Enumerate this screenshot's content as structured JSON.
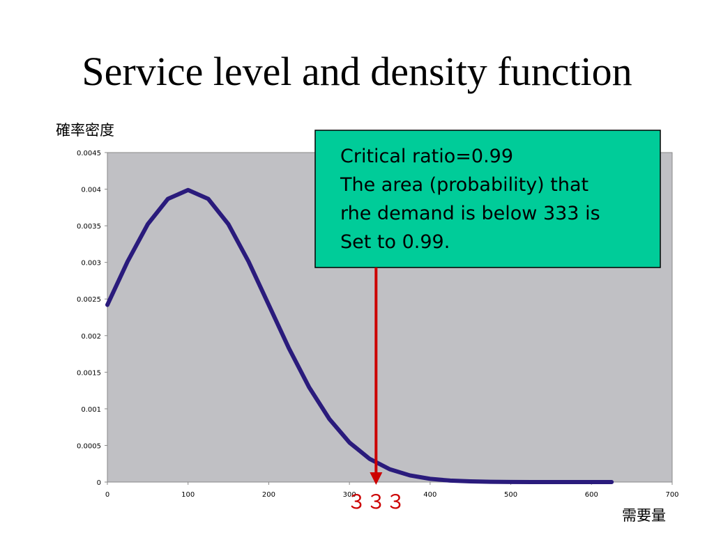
{
  "chart_data": {
    "type": "line",
    "title": "Service level and density function",
    "y_label": "確率密度",
    "x_label": "需要量",
    "x": [
      0,
      25,
      50,
      75,
      100,
      125,
      150,
      175,
      200,
      225,
      250,
      275,
      300,
      325,
      350,
      375,
      400,
      425,
      450,
      475,
      500,
      525,
      550,
      575,
      600,
      625
    ],
    "series": [
      {
        "color": "#2a1b7c",
        "values": [
          0.00242,
          0.003011,
          0.003521,
          0.003867,
          0.003989,
          0.003867,
          0.003521,
          0.003011,
          0.00242,
          0.001827,
          0.001295,
          0.000863,
          0.00054,
          0.000317,
          0.000175,
          9.1e-05,
          4.4e-05,
          2e-05,
          9e-06,
          3.5e-06,
          1.3e-06,
          5e-07,
          2e-07,
          1e-07,
          0,
          0
        ]
      }
    ],
    "xlim": [
      0,
      700
    ],
    "xticks": [
      0,
      100,
      200,
      300,
      400,
      500,
      600,
      700
    ],
    "ylim": [
      0,
      0.0045
    ],
    "yticks": [
      0,
      0.0005,
      0.001,
      0.0015,
      0.002,
      0.0025,
      0.003,
      0.0035,
      0.004,
      0.0045
    ],
    "marker": {
      "value": 333,
      "label": "３３３",
      "color": "#cc0000"
    },
    "annotation": [
      "Critical ratio=0.99",
      "The area (probability) that",
      "rhe demand is below 333 is",
      "Set to 0.99."
    ]
  }
}
